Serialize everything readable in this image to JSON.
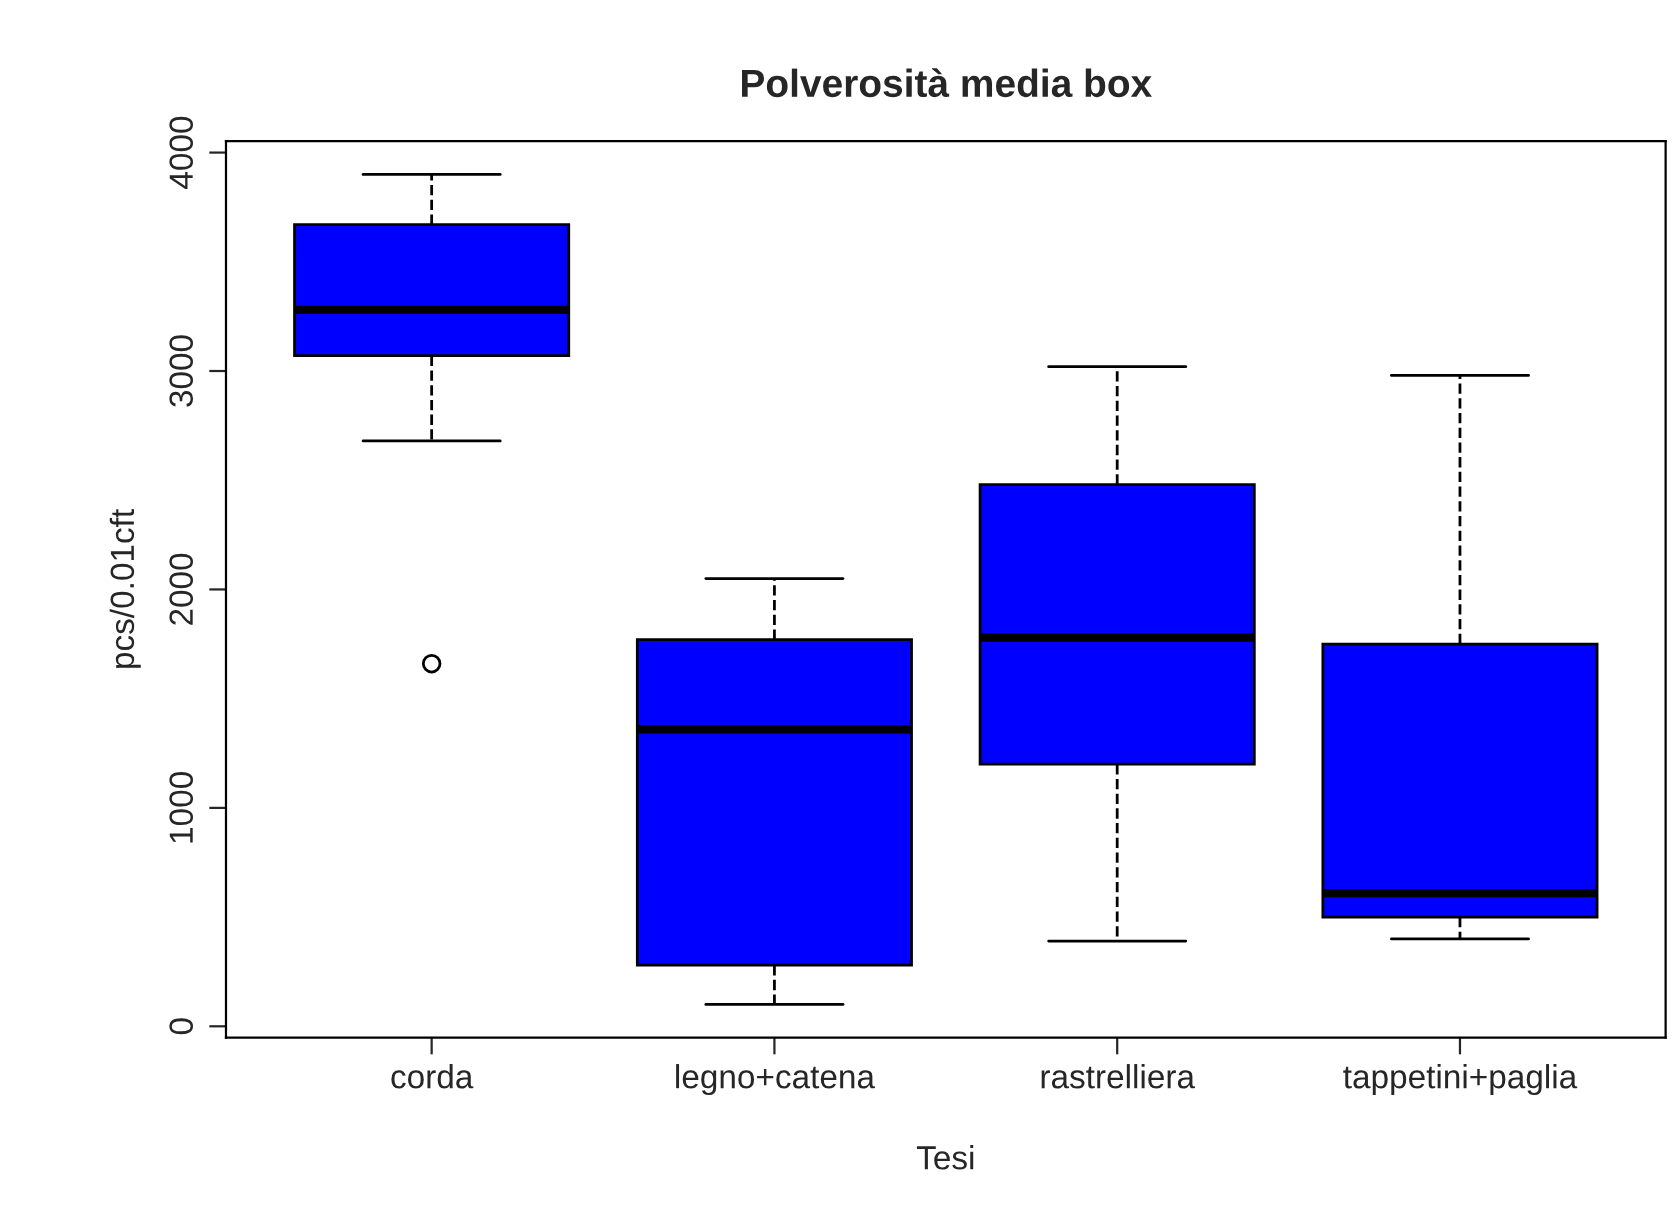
{
  "chart_data": {
    "type": "box",
    "title": "Polverosità media box",
    "xlabel": "Tesi",
    "ylabel": "pcs/0.01cft",
    "categories": [
      "corda",
      "legno+catena",
      "rastrelliera",
      "tappetini+paglia"
    ],
    "color": "#0000ff",
    "boxes": [
      {
        "low": 2680,
        "q1": 3070,
        "median": 3280,
        "q3": 3670,
        "high": 3900,
        "outliers": [
          1660
        ]
      },
      {
        "low": 100,
        "q1": 280,
        "median": 1360,
        "q3": 1770,
        "high": 2050
      },
      {
        "low": 390,
        "q1": 1200,
        "median": 1780,
        "q3": 2480,
        "high": 3020
      },
      {
        "low": 400,
        "q1": 500,
        "median": 610,
        "q3": 1750,
        "high": 2980
      }
    ],
    "ylim": [
      -52,
      4052
    ],
    "yticks": [
      0,
      1000,
      2000,
      3000,
      4000
    ],
    "grid": false
  }
}
